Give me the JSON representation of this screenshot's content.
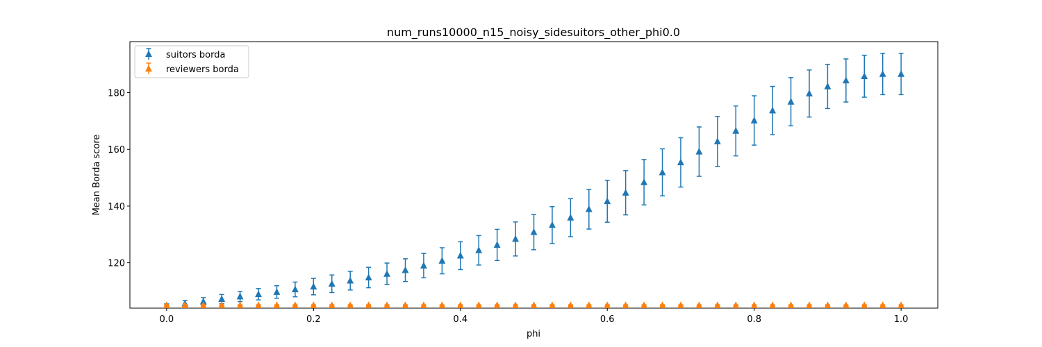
{
  "chart_data": {
    "type": "scatter",
    "title": "num_runs10000_n15_noisy_sidesuitors_other_phi0.0",
    "xlabel": "phi",
    "ylabel": "Mean Borda score",
    "xlim": [
      -0.05,
      1.05
    ],
    "ylim": [
      104,
      198
    ],
    "xticks": [
      0.0,
      0.2,
      0.4,
      0.6,
      0.8,
      1.0
    ],
    "xtick_labels": [
      "0.0",
      "0.2",
      "0.4",
      "0.6",
      "0.8",
      "1.0"
    ],
    "yticks": [
      120,
      140,
      160,
      180
    ],
    "ytick_labels": [
      "120",
      "140",
      "160",
      "180"
    ],
    "grid": false,
    "legend_position": "upper-left",
    "marker": "triangle",
    "x": [
      0.0,
      0.025,
      0.05,
      0.075,
      0.1,
      0.125,
      0.15,
      0.175,
      0.2,
      0.225,
      0.25,
      0.275,
      0.3,
      0.325,
      0.35,
      0.375,
      0.4,
      0.425,
      0.45,
      0.475,
      0.5,
      0.525,
      0.55,
      0.575,
      0.6,
      0.625,
      0.65,
      0.675,
      0.7,
      0.725,
      0.75,
      0.775,
      0.8,
      0.825,
      0.85,
      0.875,
      0.9,
      0.925,
      0.95,
      0.975,
      1.0
    ],
    "series": [
      {
        "name": "suitors borda",
        "color": "#1f77b4",
        "values": [
          105.0,
          105.6,
          106.3,
          107.2,
          108.1,
          108.9,
          109.7,
          110.6,
          111.6,
          112.6,
          113.7,
          114.8,
          116.1,
          117.4,
          119.0,
          120.7,
          122.5,
          124.4,
          126.3,
          128.4,
          130.8,
          133.3,
          135.9,
          138.9,
          141.7,
          144.7,
          148.4,
          151.9,
          155.4,
          159.2,
          162.8,
          166.5,
          170.2,
          173.7,
          176.8,
          179.7,
          182.2,
          184.3,
          185.8,
          186.6,
          186.6
        ],
        "errors": [
          0.5,
          1.1,
          1.4,
          1.6,
          1.8,
          2.0,
          2.2,
          2.6,
          2.9,
          3.1,
          3.3,
          3.6,
          3.8,
          4.0,
          4.3,
          4.6,
          4.9,
          5.2,
          5.5,
          6.0,
          6.2,
          6.5,
          6.7,
          7.0,
          7.4,
          7.8,
          8.0,
          8.3,
          8.7,
          8.7,
          8.8,
          8.8,
          8.7,
          8.5,
          8.5,
          8.3,
          7.8,
          7.6,
          7.4,
          7.3,
          7.3
        ]
      },
      {
        "name": "reviewers borda",
        "color": "#ff7f0e",
        "values": [
          105.0,
          105.0,
          105.0,
          105.0,
          105.0,
          105.0,
          105.0,
          105.0,
          105.0,
          105.0,
          105.0,
          105.0,
          105.0,
          105.0,
          105.0,
          105.0,
          105.0,
          105.0,
          105.0,
          105.0,
          105.0,
          105.0,
          105.0,
          105.0,
          105.0,
          105.0,
          105.0,
          105.0,
          105.0,
          105.0,
          105.0,
          105.0,
          105.0,
          105.0,
          105.0,
          105.0,
          105.0,
          105.0,
          105.0,
          105.0,
          105.0
        ],
        "errors": [
          0.2,
          0.2,
          0.2,
          0.2,
          0.2,
          0.2,
          0.2,
          0.2,
          0.2,
          0.2,
          0.2,
          0.2,
          0.2,
          0.2,
          0.2,
          0.2,
          0.2,
          0.2,
          0.2,
          0.2,
          0.2,
          0.2,
          0.2,
          0.2,
          0.2,
          0.2,
          0.2,
          0.2,
          0.2,
          0.2,
          0.2,
          0.2,
          0.2,
          0.2,
          0.2,
          0.2,
          0.2,
          0.2,
          0.2,
          0.2,
          0.2
        ]
      }
    ]
  }
}
